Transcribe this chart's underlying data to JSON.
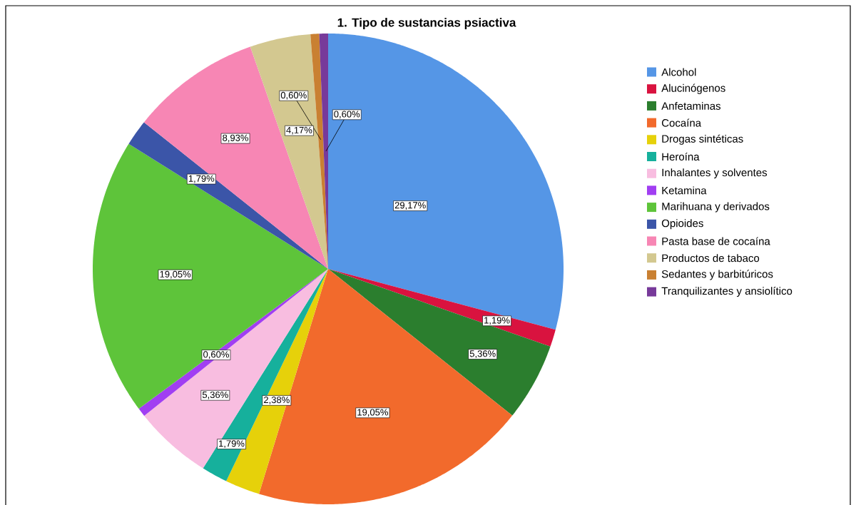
{
  "chart_data": {
    "type": "pie",
    "title": "1. Tipo de sustancias psiactiva",
    "categories": [
      "Alcohol",
      "Alucinógenos",
      "Anfetaminas",
      "Cocaína",
      "Drogas sintéticas",
      "Heroína",
      "Inhalantes y solventes",
      "Ketamina",
      "Marihuana y derivados",
      "Opioides",
      "Pasta base de cocaína",
      "Productos de tabaco",
      "Sedantes y barbitúricos",
      "Tranquilizantes y ansiolítico"
    ],
    "values": [
      29.17,
      1.19,
      5.36,
      19.05,
      2.38,
      1.79,
      5.36,
      0.6,
      19.05,
      1.79,
      8.93,
      4.17,
      0.6,
      0.6
    ],
    "value_labels": [
      "29,17%",
      "1,19%",
      "5,36%",
      "19,05%",
      "2,38%",
      "1,79%",
      "5,36%",
      "0,60%",
      "19,05%",
      "1,79%",
      "8,93%",
      "4,17%",
      "0,60%",
      "0,60%"
    ],
    "colors": [
      "#5596e6",
      "#d9133f",
      "#2b7e2e",
      "#f26a2c",
      "#e6d10a",
      "#16b09c",
      "#f8bde0",
      "#a13ef2",
      "#5ec43a",
      "#3b55a8",
      "#f786b4",
      "#d3c890",
      "#c98032",
      "#773a9a"
    ],
    "legend": "right"
  }
}
